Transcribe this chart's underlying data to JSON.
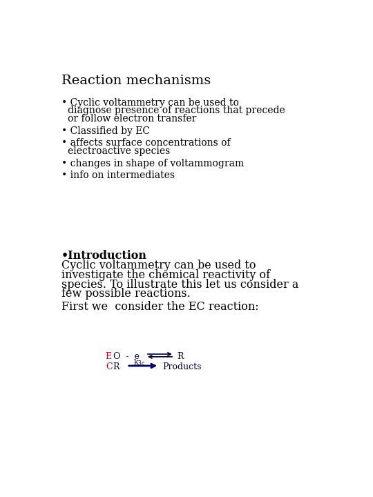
{
  "title": "Reaction mechanisms",
  "title_fontsize": 14,
  "title_color": "#000000",
  "title_font": "DejaVu Serif",
  "bg_color": "#ffffff",
  "bullet_points": [
    "Cyclic voltammetry can be used to\ndiagnose presence of reactions that precede\nor follow electron transfer",
    "Classified by EC",
    "affects surface concentrations of\nelectroactive species",
    "changes in shape of voltammogram",
    "info on intermediates"
  ],
  "bullet_fontsize": 10,
  "bullet_color": "#000000",
  "intro_bold": "•Introduction",
  "intro_para": "Cyclic voltammetry can be used to\ninvestigate the chemical reactivity of\nspecies. To illustrate this let us consider a\nfew possible reactions.",
  "first_line": "First we  consider the EC reaction:",
  "intro_fontsize": 11.5,
  "label_E_color": "#cc0000",
  "label_C_color": "#cc0000",
  "eq_color": "#000033",
  "arrow_color": "#000066",
  "products_color": "#000033"
}
